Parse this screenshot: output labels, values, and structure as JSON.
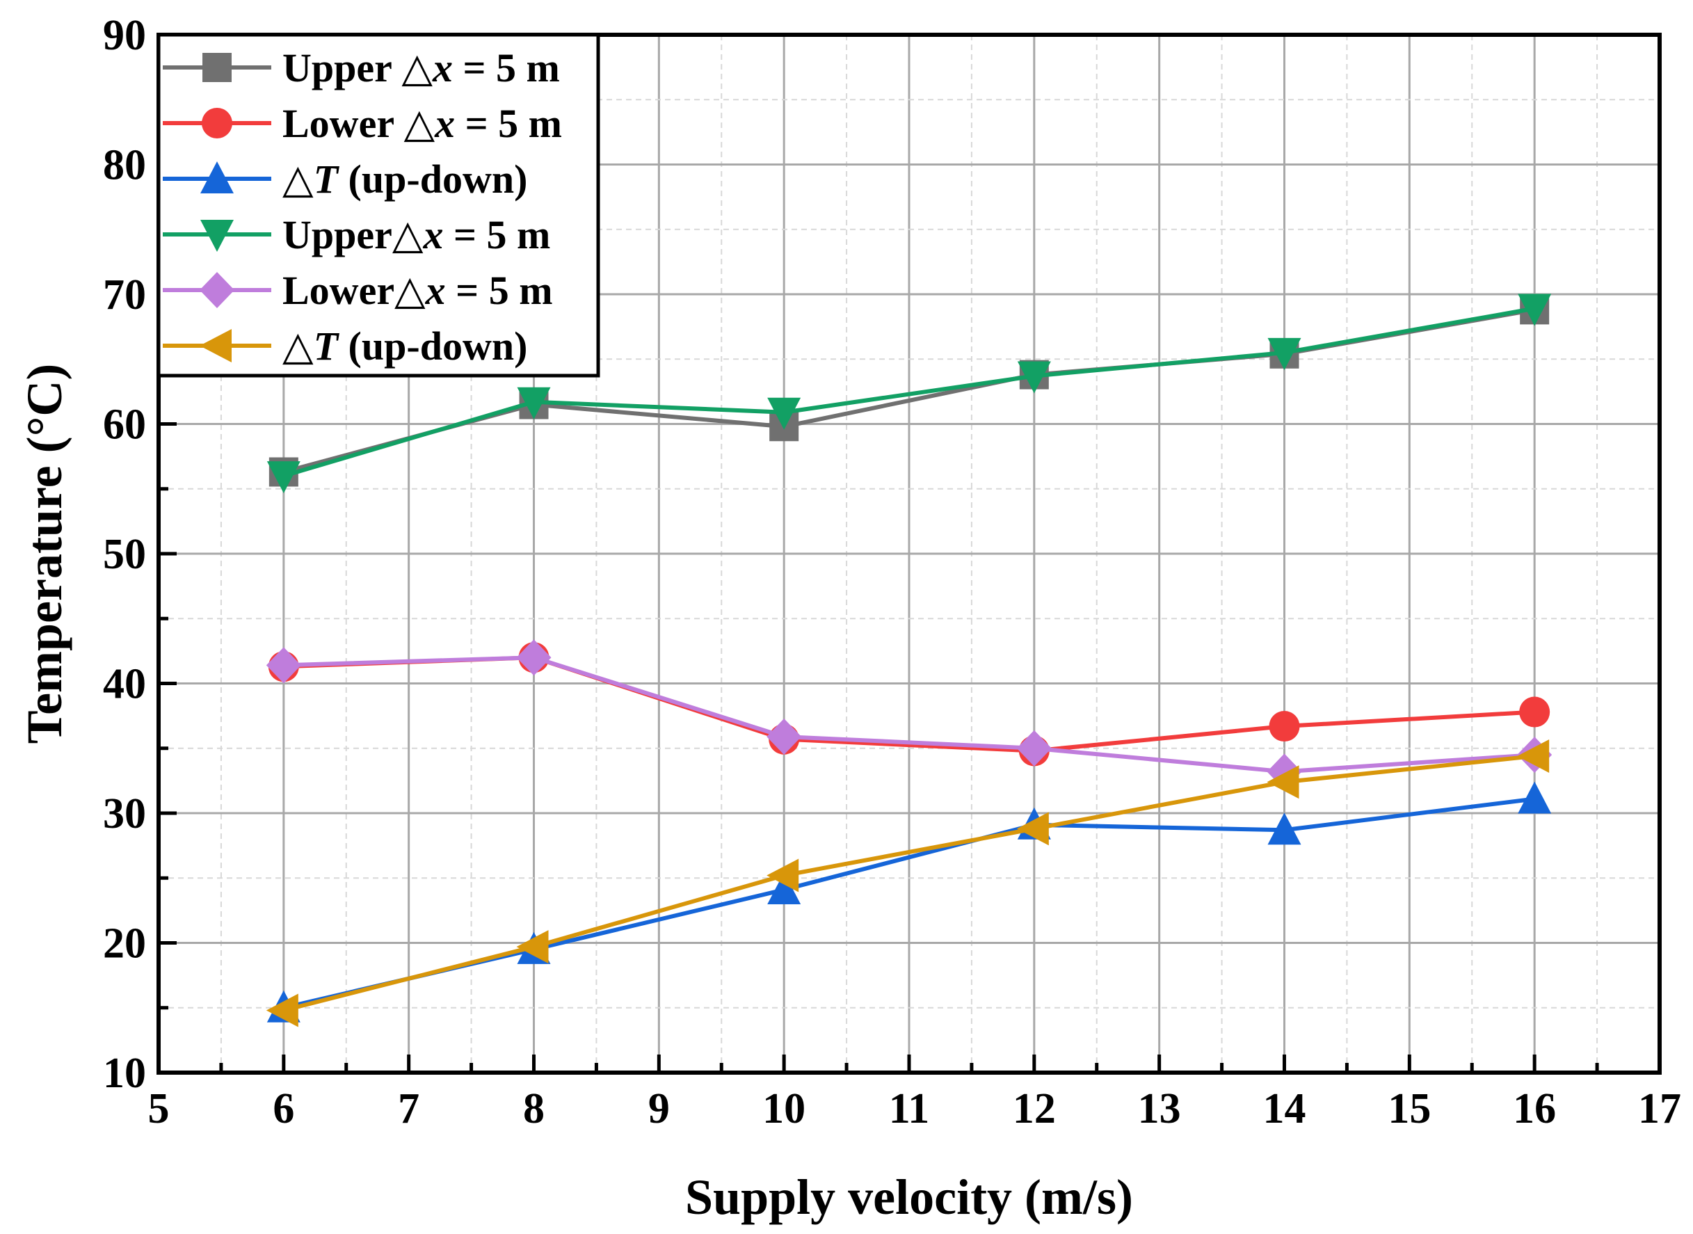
{
  "chart_data": {
    "type": "line",
    "title": "",
    "xlabel": "Supply velocity (m/s)",
    "ylabel": "Temperature (°C)",
    "xlim": [
      5,
      17
    ],
    "ylim": [
      10,
      90
    ],
    "xticks": [
      5,
      6,
      7,
      8,
      9,
      10,
      11,
      12,
      13,
      14,
      15,
      16,
      17
    ],
    "yticks": [
      10,
      20,
      30,
      40,
      50,
      60,
      70,
      80,
      90
    ],
    "grid": true,
    "legend_position": "top-left",
    "x": [
      6,
      8,
      10,
      12,
      14,
      16
    ],
    "series": [
      {
        "name": "Upper △x = 5 m",
        "label_prefix": "Upper △",
        "label_var": "x",
        "label_suffix": " = 5 m",
        "color": "#707070",
        "marker": "square",
        "values": [
          56.3,
          61.5,
          59.8,
          63.8,
          65.4,
          68.8
        ]
      },
      {
        "name": "Lower △x = 5 m",
        "label_prefix": "Lower △",
        "label_var": "x",
        "label_suffix": " = 5 m",
        "color": "#f23c3c",
        "marker": "circle",
        "values": [
          41.3,
          42.0,
          35.7,
          34.8,
          36.7,
          37.8
        ]
      },
      {
        "name": "△T (up-down)",
        "label_prefix": "△",
        "label_var": "T",
        "label_suffix": " (up-down)",
        "color": "#1565d8",
        "marker": "triangle-up",
        "values": [
          15.0,
          19.5,
          24.1,
          29.1,
          28.7,
          31.1
        ]
      },
      {
        "name": "Upper△x = 5 m",
        "label_prefix": "Upper△",
        "label_var": "x",
        "label_suffix": " = 5 m",
        "color": "#12a064",
        "marker": "triangle-down",
        "values": [
          56.0,
          61.7,
          60.9,
          63.7,
          65.5,
          68.9
        ]
      },
      {
        "name": "Lower△x = 5 m",
        "label_prefix": "Lower△",
        "label_var": "x",
        "label_suffix": " = 5 m",
        "color": "#bf7ddc",
        "marker": "diamond",
        "values": [
          41.4,
          42.0,
          35.9,
          35.0,
          33.2,
          34.5
        ]
      },
      {
        "name": "△T (up-down)",
        "label_prefix": "△",
        "label_var": "T",
        "label_suffix": " (up-down)",
        "color": "#d8960a",
        "marker": "triangle-left",
        "values": [
          14.8,
          19.7,
          25.2,
          28.8,
          32.4,
          34.4
        ]
      }
    ]
  }
}
